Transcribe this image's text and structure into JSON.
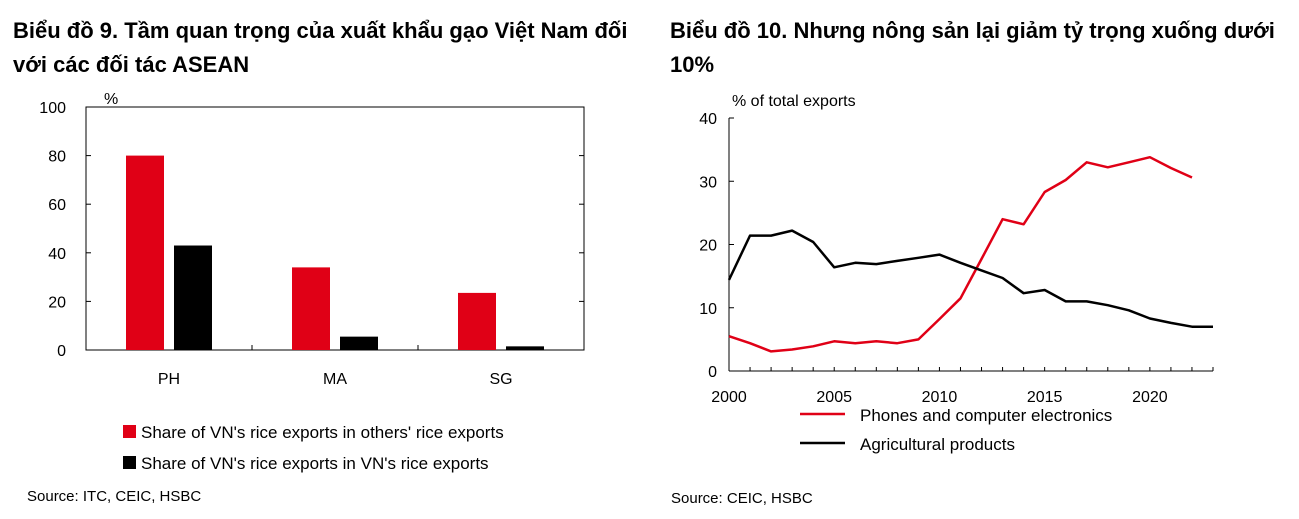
{
  "chart_data": [
    {
      "type": "bar",
      "title": "Biểu đồ 9. Tầm quan trọng của xuất khẩu gạo Việt Nam đối với các đối tác ASEAN",
      "ylabel": "%",
      "ylim": [
        0,
        100
      ],
      "yticks": [
        "100",
        "80",
        "60",
        "40",
        "20",
        "0"
      ],
      "categories": [
        "PH",
        "MA",
        "SG"
      ],
      "series": [
        {
          "name": "Share of VN's rice exports in others' rice exports",
          "color": "#e00016",
          "values": [
            80,
            34,
            23.5
          ]
        },
        {
          "name": "Share of VN's rice exports in VN's rice exports",
          "color": "#000000",
          "values": [
            43,
            5.5,
            1.5
          ]
        }
      ],
      "legend_position": "bottom",
      "grid": false,
      "source": "Source: ITC, CEIC, HSBC"
    },
    {
      "type": "line",
      "title": "Biểu đồ 10. Nhưng nông sản lại giảm tỷ trọng xuống dưới 10%",
      "ylabel": "% of total  exports",
      "xlim": [
        2000,
        2023
      ],
      "ylim": [
        0,
        40
      ],
      "xticks": [
        "2000",
        "2005",
        "2010",
        "2015",
        "2020"
      ],
      "yticks": [
        "40",
        "30",
        "20",
        "10",
        "0"
      ],
      "series": [
        {
          "name": "Phones and computer electronics",
          "color": "#e00016",
          "x": [
            2000,
            2001,
            2002,
            2003,
            2004,
            2005,
            2006,
            2007,
            2008,
            2009,
            2010,
            2011,
            2012,
            2013,
            2014,
            2015,
            2016,
            2017,
            2018,
            2019,
            2020,
            2021,
            2022
          ],
          "values": [
            5.5,
            4.4,
            3.1,
            3.4,
            3.9,
            4.7,
            4.4,
            4.7,
            4.4,
            5.0,
            8.2,
            11.5,
            17.7,
            24.0,
            23.2,
            28.3,
            30.2,
            33.0,
            32.2,
            33.0,
            33.8,
            32.1,
            30.6
          ]
        },
        {
          "name": "Agricultural products",
          "color": "#000000",
          "x": [
            2000,
            2001,
            2002,
            2003,
            2004,
            2005,
            2006,
            2007,
            2008,
            2009,
            2010,
            2011,
            2012,
            2013,
            2014,
            2015,
            2016,
            2017,
            2018,
            2019,
            2020,
            2021,
            2022,
            2023
          ],
          "values": [
            14.4,
            21.4,
            21.4,
            22.2,
            20.4,
            16.4,
            17.1,
            16.9,
            17.4,
            17.9,
            18.4,
            17.1,
            15.9,
            14.7,
            12.3,
            12.8,
            11.0,
            11.0,
            10.4,
            9.6,
            8.3,
            7.6,
            7.0,
            7.0
          ]
        }
      ],
      "legend_position": "bottom",
      "grid": false,
      "source": "Source: CEIC, HSBC"
    }
  ]
}
